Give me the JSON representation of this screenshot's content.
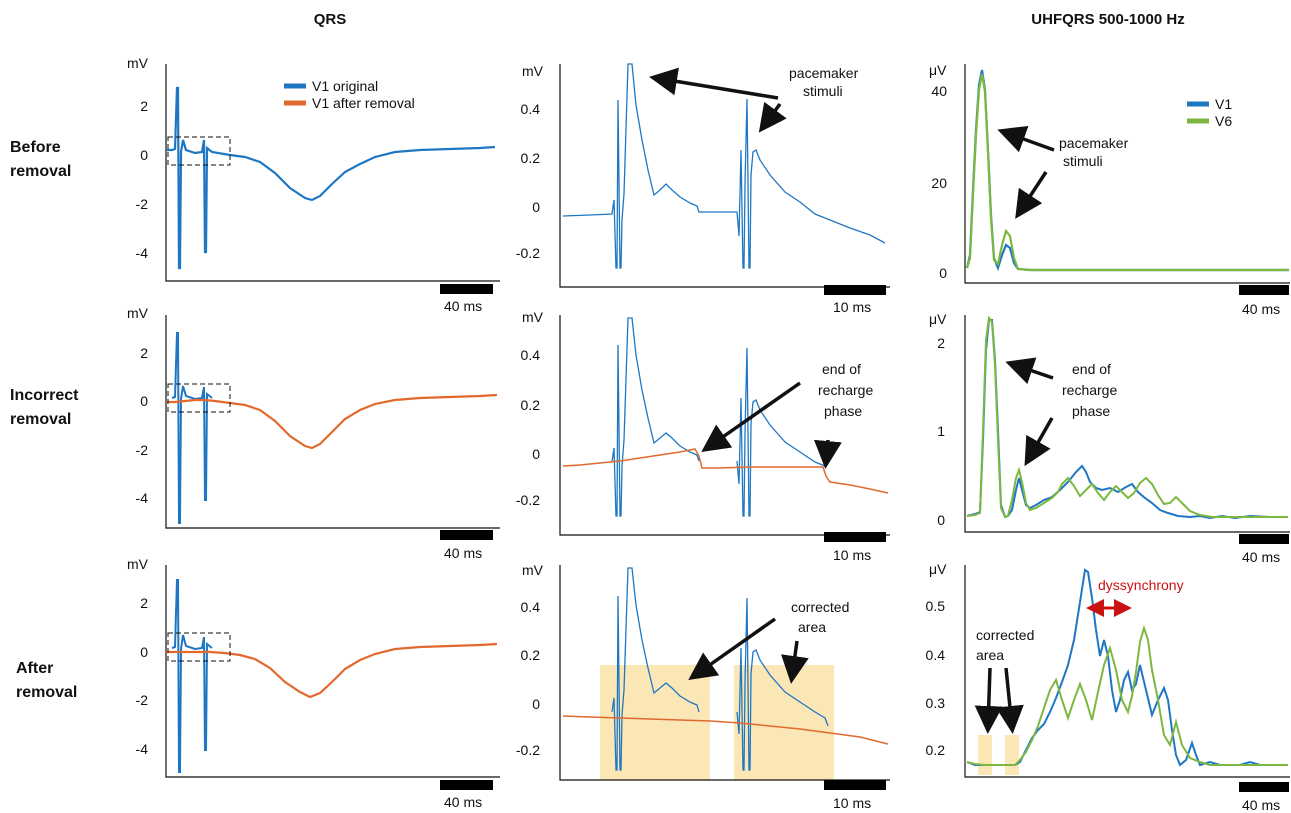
{
  "headers": {
    "qrs": "QRS",
    "uhf": "UHFQRS 500-1000 Hz"
  },
  "rows": [
    {
      "l1": "Before",
      "l2": "removal"
    },
    {
      "l1": "Incorrect",
      "l2": "removal"
    },
    {
      "l1": "After",
      "l2": "removal"
    }
  ],
  "colors": {
    "v1_original": "#1f77c4",
    "v1_after": "#e2692e",
    "v6": "#7cb83f",
    "highlight": "#fbe7b5",
    "dyssync": "#cc1111"
  },
  "legends": {
    "qrs": [
      "V1 original",
      "V1 after removal"
    ],
    "uhf": [
      "V1",
      "V6"
    ]
  },
  "units": {
    "mv": "mV",
    "uv": "μV"
  },
  "scalebars": {
    "left": "40 ms",
    "mid": "10 ms",
    "right": "40 ms"
  },
  "annotations": {
    "pacemaker_l1": "pacemaker",
    "pacemaker_l2": "stimuli",
    "recharge_l1": "end of",
    "recharge_l2": "recharge",
    "recharge_l3": "phase",
    "corrected_l1": "corrected",
    "corrected_l2": "area",
    "dyssync": "dyssynchrony"
  },
  "chart_data": [
    {
      "type": "line",
      "panel": "qrs-before",
      "ylabel": "mV",
      "ytick_labels": [
        "2",
        "0",
        "-2",
        "-4"
      ],
      "series": [
        {
          "name": "V1 original"
        }
      ]
    },
    {
      "type": "line",
      "panel": "qrs-zoom-before",
      "ylabel": "mV",
      "ytick_labels": [
        "0.4",
        "0.2",
        "0",
        "-0.2"
      ]
    },
    {
      "type": "line",
      "panel": "uhf-before",
      "ylabel": "μV",
      "ytick_labels": [
        "40",
        "20",
        "0"
      ],
      "series": [
        {
          "name": "V1",
          "peaks": [
            42,
            7
          ]
        },
        {
          "name": "V6",
          "peaks": [
            41,
            9
          ]
        }
      ]
    },
    {
      "type": "line",
      "panel": "qrs-incorrect",
      "ylabel": "mV",
      "ytick_labels": [
        "2",
        "0",
        "-2",
        "-4"
      ],
      "series": [
        {
          "name": "V1 original"
        },
        {
          "name": "V1 after removal"
        }
      ]
    },
    {
      "type": "line",
      "panel": "qrs-zoom-incorrect",
      "ylabel": "mV",
      "ytick_labels": [
        "0.4",
        "0.2",
        "0",
        "-0.2"
      ]
    },
    {
      "type": "line",
      "panel": "uhf-incorrect",
      "ylabel": "μV",
      "ytick_labels": [
        "2",
        "1",
        "0"
      ]
    },
    {
      "type": "line",
      "panel": "qrs-after",
      "ylabel": "mV",
      "ytick_labels": [
        "2",
        "0",
        "-2",
        "-4"
      ]
    },
    {
      "type": "line",
      "panel": "qrs-zoom-after",
      "ylabel": "mV",
      "ytick_labels": [
        "0.4",
        "0.2",
        "0",
        "-0.2"
      ]
    },
    {
      "type": "line",
      "panel": "uhf-after",
      "ylabel": "μV",
      "ytick_labels": [
        "0.5",
        "0.4",
        "0.3",
        "0.2"
      ]
    }
  ]
}
